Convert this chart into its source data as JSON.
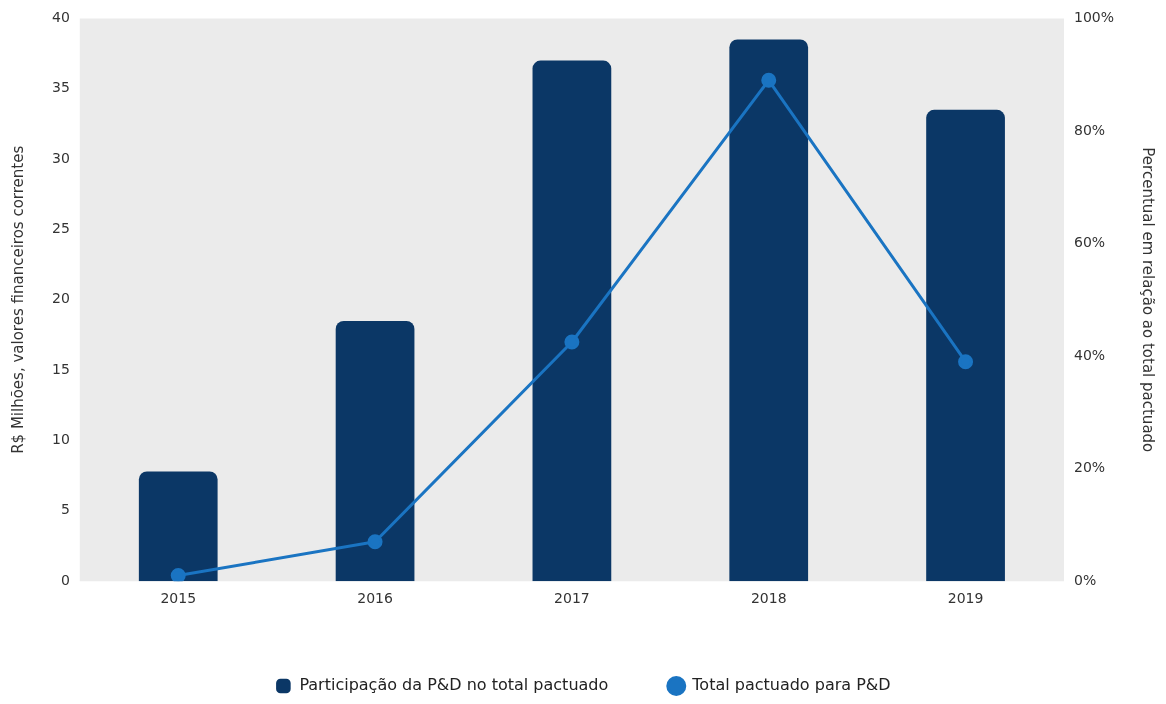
{
  "chart_data": {
    "type": "bar",
    "ylabel": "R$ Milhões, valores financeiros correntes",
    "y2label": "Percentual em relação ao total pactuado",
    "categories": [
      "2015",
      "2016",
      "2017",
      "2018",
      "2019"
    ],
    "series": [
      {
        "name": "Participação da P&D no total pactuado",
        "color": "#0b3766",
        "values": [
          7.8,
          18.5,
          37,
          38.5,
          33.5
        ]
      },
      {
        "name": "Total pactuado para P&D",
        "type": "line",
        "axis": "y2",
        "color": "#1a74c2",
        "values": [
          1,
          7,
          42.5,
          89,
          39
        ]
      }
    ],
    "ylim": [
      0,
      40
    ],
    "yticks": [
      0,
      5,
      10,
      15,
      20,
      25,
      30,
      35,
      40
    ],
    "y2lim": [
      0,
      100
    ],
    "y2ticks": [
      {
        "value": 0,
        "label": "0%"
      },
      {
        "value": 20,
        "label": "20%"
      },
      {
        "value": 40,
        "label": "40%"
      },
      {
        "value": 60,
        "label": "60%"
      },
      {
        "value": 80,
        "label": "80%"
      },
      {
        "value": 100,
        "label": "100%"
      }
    ],
    "grid": false,
    "legend": "bottom",
    "marker": "circle",
    "line_style": "solid"
  }
}
